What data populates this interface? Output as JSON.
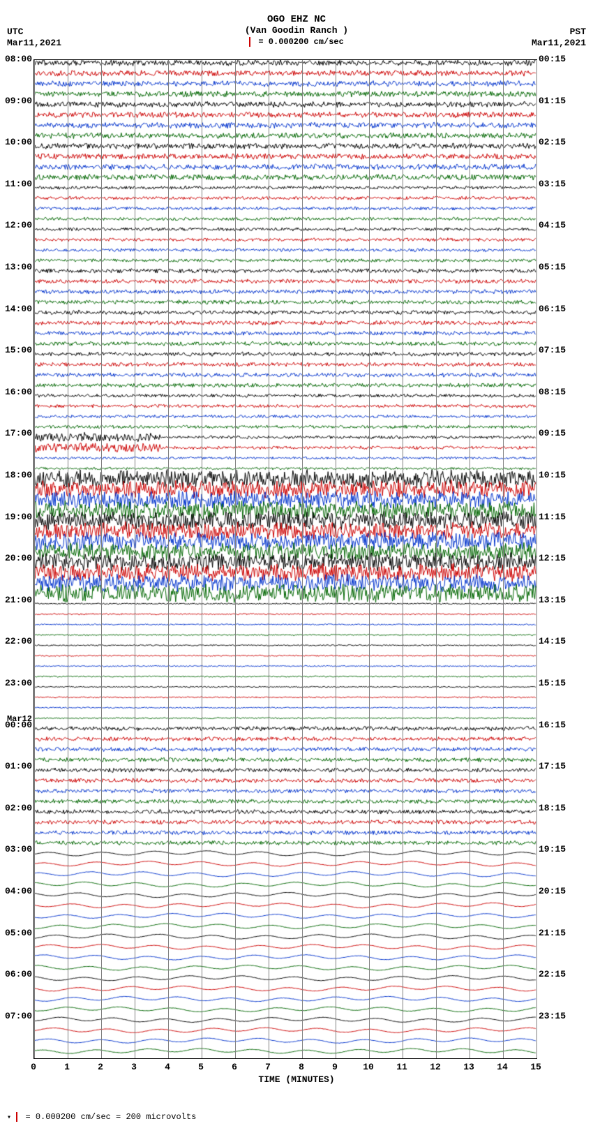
{
  "header": {
    "title": "OGO EHZ NC",
    "subtitle": "(Van Goodin Ranch )",
    "scale_text": "= 0.000200 cm/sec"
  },
  "corners": {
    "tl_tz": "UTC",
    "tl_date": "Mar11,2021",
    "tr_tz": "PST",
    "tr_date": "Mar11,2021"
  },
  "footer": {
    "text": "= 0.000200 cm/sec =    200 microvolts"
  },
  "plot": {
    "x_label": "TIME (MINUTES)",
    "x_ticks": [
      "0",
      "1",
      "2",
      "3",
      "4",
      "5",
      "6",
      "7",
      "8",
      "9",
      "10",
      "11",
      "12",
      "13",
      "14",
      "15"
    ],
    "colors": [
      "#000000",
      "#cc0000",
      "#0033cc",
      "#006600"
    ],
    "background": "#ffffff",
    "grid_color": "#808080",
    "n_traces": 96,
    "trace_spacing": 14.9,
    "left_hours": [
      {
        "label": "08:00",
        "row": 0
      },
      {
        "label": "09:00",
        "row": 4
      },
      {
        "label": "10:00",
        "row": 8
      },
      {
        "label": "11:00",
        "row": 12
      },
      {
        "label": "12:00",
        "row": 16
      },
      {
        "label": "13:00",
        "row": 20
      },
      {
        "label": "14:00",
        "row": 24
      },
      {
        "label": "15:00",
        "row": 28
      },
      {
        "label": "16:00",
        "row": 32
      },
      {
        "label": "17:00",
        "row": 36
      },
      {
        "label": "18:00",
        "row": 40
      },
      {
        "label": "19:00",
        "row": 44
      },
      {
        "label": "20:00",
        "row": 48
      },
      {
        "label": "21:00",
        "row": 52
      },
      {
        "label": "22:00",
        "row": 56
      },
      {
        "label": "23:00",
        "row": 60
      },
      {
        "label": "Mar12",
        "row": 63.5,
        "small": true
      },
      {
        "label": "00:00",
        "row": 64
      },
      {
        "label": "01:00",
        "row": 68
      },
      {
        "label": "02:00",
        "row": 72
      },
      {
        "label": "03:00",
        "row": 76
      },
      {
        "label": "04:00",
        "row": 80
      },
      {
        "label": "05:00",
        "row": 84
      },
      {
        "label": "06:00",
        "row": 88
      },
      {
        "label": "07:00",
        "row": 92
      }
    ],
    "right_hours": [
      {
        "label": "00:15",
        "row": 0
      },
      {
        "label": "01:15",
        "row": 4
      },
      {
        "label": "02:15",
        "row": 8
      },
      {
        "label": "03:15",
        "row": 12
      },
      {
        "label": "04:15",
        "row": 16
      },
      {
        "label": "05:15",
        "row": 20
      },
      {
        "label": "06:15",
        "row": 24
      },
      {
        "label": "07:15",
        "row": 28
      },
      {
        "label": "08:15",
        "row": 32
      },
      {
        "label": "09:15",
        "row": 36
      },
      {
        "label": "10:15",
        "row": 40
      },
      {
        "label": "11:15",
        "row": 44
      },
      {
        "label": "12:15",
        "row": 48
      },
      {
        "label": "13:15",
        "row": 52
      },
      {
        "label": "14:15",
        "row": 56
      },
      {
        "label": "15:15",
        "row": 60
      },
      {
        "label": "16:15",
        "row": 64
      },
      {
        "label": "17:15",
        "row": 68
      },
      {
        "label": "18:15",
        "row": 72
      },
      {
        "label": "19:15",
        "row": 76
      },
      {
        "label": "20:15",
        "row": 80
      },
      {
        "label": "21:15",
        "row": 84
      },
      {
        "label": "22:15",
        "row": 88
      },
      {
        "label": "23:15",
        "row": 92
      }
    ],
    "amplitude_profile": [
      {
        "from": 0,
        "to": 12,
        "amp": 3.5,
        "noise": 1.0
      },
      {
        "from": 12,
        "to": 20,
        "amp": 2.0,
        "noise": 0.6
      },
      {
        "from": 20,
        "to": 32,
        "amp": 2.5,
        "noise": 0.8
      },
      {
        "from": 32,
        "to": 36,
        "amp": 2.0,
        "noise": 0.6
      },
      {
        "from": 36,
        "to": 38,
        "amp": 6.0,
        "noise": 1.5,
        "burst_end": 0.25
      },
      {
        "from": 38,
        "to": 40,
        "amp": 1.5,
        "noise": 0.5
      },
      {
        "from": 40,
        "to": 52,
        "amp": 11.0,
        "noise": 3.0
      },
      {
        "from": 52,
        "to": 64,
        "amp": 0.8,
        "noise": 0.3
      },
      {
        "from": 64,
        "to": 76,
        "amp": 2.5,
        "noise": 0.8
      },
      {
        "from": 76,
        "to": 96,
        "amp": 4.0,
        "noise": 0.5,
        "wavy": true
      }
    ]
  }
}
